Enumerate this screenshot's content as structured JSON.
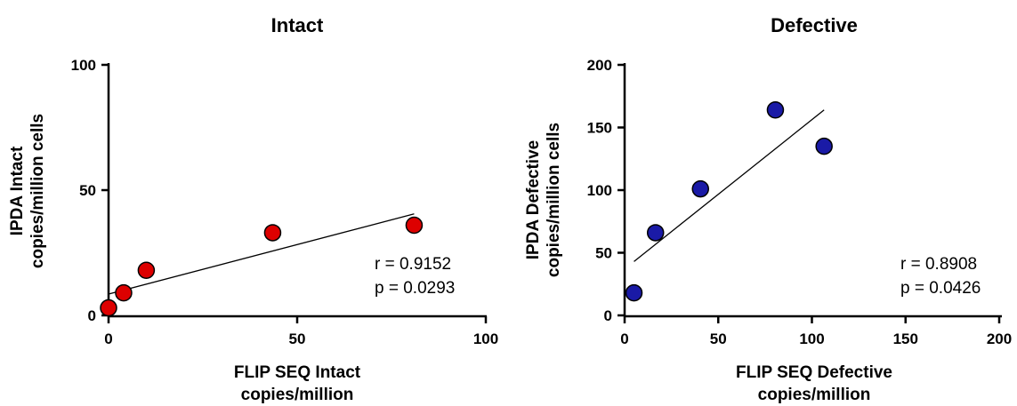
{
  "chart_data": [
    {
      "type": "scatter",
      "title": "Intact",
      "xlabel": [
        "FLIP SEQ Intact",
        "copies/million"
      ],
      "ylabel": [
        "IPDA Intact",
        "copies/million cells"
      ],
      "xlim": [
        0,
        100
      ],
      "ylim": [
        0,
        100
      ],
      "xticks": [
        0,
        50,
        100
      ],
      "yticks": [
        0,
        50,
        100
      ],
      "points": [
        {
          "x": 0,
          "y": 3
        },
        {
          "x": 4,
          "y": 9
        },
        {
          "x": 10,
          "y": 18
        },
        {
          "x": 43.5,
          "y": 33
        },
        {
          "x": 81,
          "y": 36
        }
      ],
      "fit_line": {
        "x": [
          0,
          81
        ],
        "y": [
          8.5,
          40.5
        ]
      },
      "annotations": [
        "r = 0.9152",
        "p = 0.0293"
      ],
      "point_color": "#dd0000",
      "grid": false
    },
    {
      "type": "scatter",
      "title": "Defective",
      "xlabel": [
        "FLIP SEQ Defective",
        "copies/million"
      ],
      "ylabel": [
        "IPDA  Defective",
        "copies/million cells"
      ],
      "xlim": [
        0,
        200
      ],
      "ylim": [
        0,
        200
      ],
      "xticks": [
        0,
        50,
        100,
        150,
        200
      ],
      "yticks": [
        0,
        50,
        100,
        150,
        200
      ],
      "points": [
        {
          "x": 5,
          "y": 18
        },
        {
          "x": 16.5,
          "y": 66
        },
        {
          "x": 40.5,
          "y": 101
        },
        {
          "x": 80.5,
          "y": 164
        },
        {
          "x": 106.5,
          "y": 135
        }
      ],
      "fit_line": {
        "x": [
          5,
          106.5
        ],
        "y": [
          43,
          164
        ]
      },
      "annotations": [
        "r = 0.8908",
        "p = 0.0426"
      ],
      "point_color": "#1a1aa6",
      "grid": false
    }
  ]
}
